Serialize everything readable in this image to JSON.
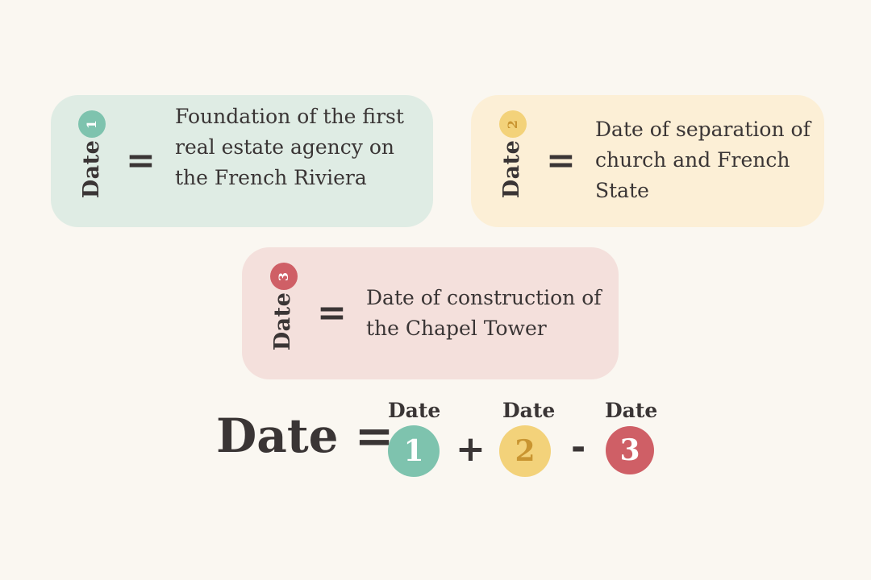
{
  "cards": [
    {
      "label": "Date",
      "number": "1",
      "equals": "=",
      "description": "Foundation of the first real estate agency on the French Riviera",
      "color": "#7ec3ae",
      "background": "#dfece4"
    },
    {
      "label": "Date",
      "number": "2",
      "equals": "=",
      "description": "Date of separation of church and French State",
      "color": "#f3d27a",
      "background": "#fcefd6"
    },
    {
      "label": "Date",
      "number": "3",
      "equals": "=",
      "description": "Date of construction of the Chapel Tower",
      "color": "#cf5f66",
      "background": "#f4e0dc"
    }
  ],
  "formula": {
    "lhs": "Date =",
    "terms": [
      {
        "label": "Date",
        "number": "1"
      },
      {
        "label": "Date",
        "number": "2"
      },
      {
        "label": "Date",
        "number": "3"
      }
    ],
    "operators": [
      "+",
      "-"
    ]
  }
}
